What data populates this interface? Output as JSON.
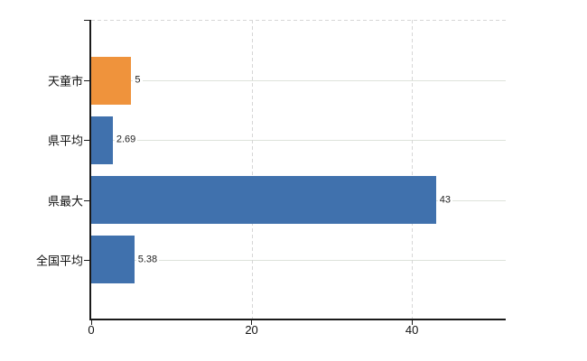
{
  "chart_data": {
    "type": "bar",
    "orientation": "horizontal",
    "title": "",
    "xlabel": "",
    "ylabel": "",
    "categories": [
      "天童市",
      "県平均",
      "県最大",
      "全国平均"
    ],
    "values": [
      5,
      2.69,
      43,
      5.38
    ],
    "value_labels": [
      "5",
      "2.69",
      "43",
      "5.38"
    ],
    "bar_colors": [
      "#ef933c",
      "#4071ad",
      "#4071ad",
      "#4071ad"
    ],
    "x_ticks": [
      0,
      20,
      40
    ],
    "x_tick_labels": [
      "0",
      "20",
      "40"
    ],
    "xlim": [
      0,
      51.7
    ],
    "grid": "vertical-dashed-and-row-lines",
    "legend": "none"
  },
  "colors": {
    "axis": "#1a1a1a",
    "dashed_grid": "#d6d6d6",
    "row_grid": "#dde2db",
    "value_label": "#222222",
    "tick_label": "#111111",
    "background": "#ffffff"
  }
}
